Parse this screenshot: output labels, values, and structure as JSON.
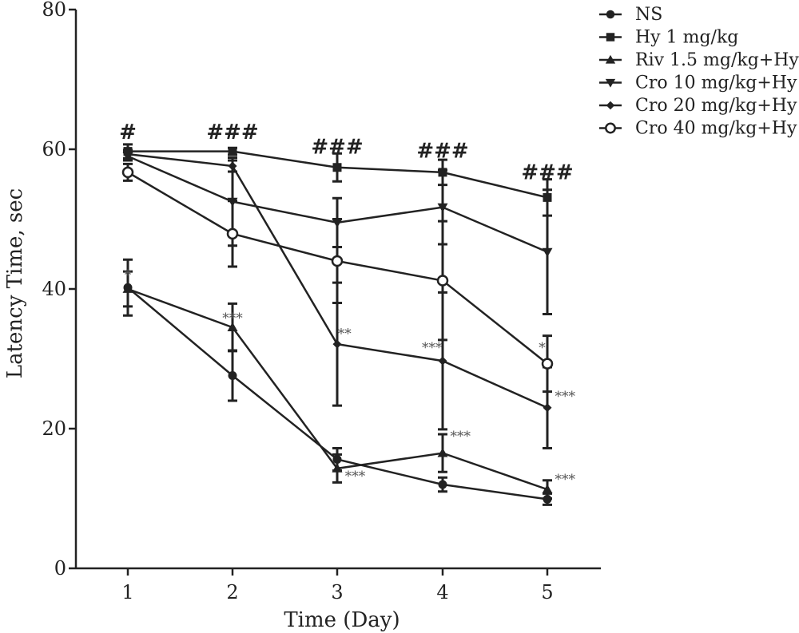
{
  "chart_data": {
    "type": "line",
    "xlabel": "Time (Day)",
    "ylabel": "Latency Time, sec",
    "x": [
      1,
      2,
      3,
      4,
      5
    ],
    "ylim": [
      0,
      80
    ],
    "yticks": [
      0,
      20,
      40,
      60,
      80
    ],
    "grid": false,
    "legend_position": "top-right",
    "series": [
      {
        "name": "NS",
        "marker": "circle-filled",
        "values": [
          40.2,
          27.6,
          15.6,
          12.0,
          9.9
        ],
        "errors": [
          4.0,
          3.6,
          1.6,
          1.0,
          0.8
        ]
      },
      {
        "name": "Hy 1 mg/kg",
        "marker": "square-filled",
        "values": [
          59.7,
          59.7,
          57.4,
          56.7,
          53.1
        ],
        "errors": [
          1.0,
          0.5,
          2.0,
          1.8,
          2.6
        ]
      },
      {
        "name": "Riv 1.5 mg/kg+Hy",
        "marker": "triangle-up-filled",
        "values": [
          40.0,
          34.5,
          14.3,
          16.5,
          11.3
        ],
        "errors": [
          2.5,
          3.4,
          2.0,
          2.7,
          1.3
        ]
      },
      {
        "name": "Cro 10 mg/kg+Hy",
        "marker": "triangle-down-filled",
        "values": [
          59.0,
          52.5,
          49.5,
          51.7,
          45.3
        ],
        "errors": [
          0.6,
          6.3,
          3.5,
          5.3,
          8.9
        ]
      },
      {
        "name": "Cro 20 mg/kg+Hy",
        "marker": "diamond-filled",
        "values": [
          59.3,
          57.6,
          32.1,
          29.7,
          23.0
        ],
        "errors": [
          0.6,
          0.8,
          8.8,
          9.8,
          5.8
        ]
      },
      {
        "name": "Cro 40 mg/kg+Hy",
        "marker": "circle-open",
        "values": [
          56.7,
          47.9,
          44.0,
          41.2,
          29.3
        ],
        "errors": [
          1.2,
          4.7,
          6.0,
          8.5,
          4.0
        ]
      }
    ],
    "annotations": [
      {
        "text": "#",
        "x": 1,
        "y": 61.5,
        "style": "hash"
      },
      {
        "text": "###",
        "x": 2,
        "y": 61.5,
        "style": "hash"
      },
      {
        "text": "###",
        "x": 3,
        "y": 59.4,
        "style": "hash"
      },
      {
        "text": "###",
        "x": 4,
        "y": 58.8,
        "style": "hash"
      },
      {
        "text": "###",
        "x": 5,
        "y": 55.7,
        "style": "hash"
      },
      {
        "text": "*",
        "x": 1,
        "y": 41.4,
        "style": "star"
      },
      {
        "text": "***",
        "x": 2,
        "y": 35.2,
        "style": "star"
      },
      {
        "text": "**",
        "x": 3.07,
        "y": 33.0,
        "style": "star"
      },
      {
        "text": "***",
        "x": 3.17,
        "y": 12.6,
        "style": "star"
      },
      {
        "text": "***",
        "x": 3.9,
        "y": 31.0,
        "style": "star"
      },
      {
        "text": "***",
        "x": 4.17,
        "y": 18.3,
        "style": "star"
      },
      {
        "text": "*",
        "x": 4.95,
        "y": 31.0,
        "style": "star"
      },
      {
        "text": "***",
        "x": 5.17,
        "y": 24.0,
        "style": "star"
      },
      {
        "text": "***",
        "x": 5.17,
        "y": 12.1,
        "style": "star"
      }
    ]
  }
}
